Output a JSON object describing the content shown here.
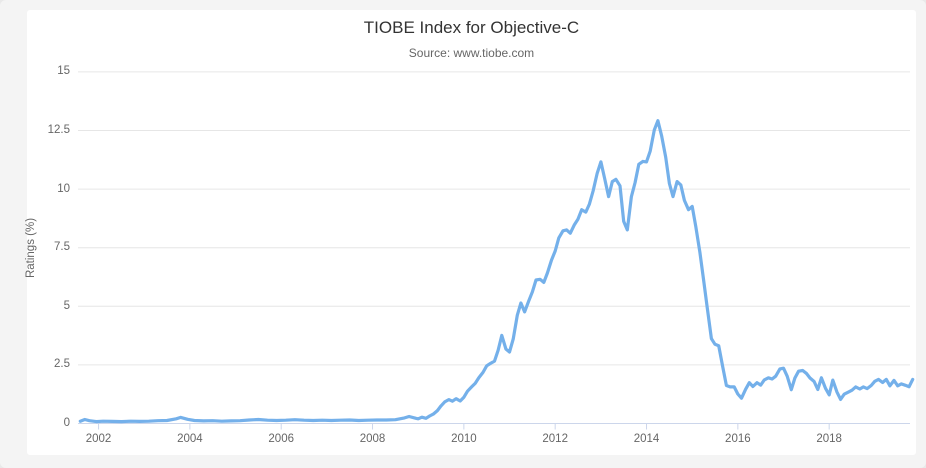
{
  "page": {
    "background_color": "#f4f4f4",
    "card_background_color": "#ffffff"
  },
  "chart_data": {
    "type": "line",
    "title": "TIOBE Index for Objective-C",
    "subtitle": "Source: www.tiobe.com",
    "xlabel": "",
    "ylabel": "Ratings (%)",
    "legend": "none",
    "grid": "horizontal",
    "ylim": [
      0,
      15
    ],
    "xlim": [
      2001.55,
      2019.77
    ],
    "yticks": [
      0,
      2.5,
      5,
      7.5,
      10,
      12.5,
      15
    ],
    "ytick_labels": [
      "0",
      "2.5",
      "5",
      "7.5",
      "10",
      "12.5",
      "15"
    ],
    "xticks": [
      2002,
      2004,
      2006,
      2008,
      2010,
      2012,
      2014,
      2016,
      2018
    ],
    "xtick_labels": [
      "2002",
      "2004",
      "2006",
      "2008",
      "2010",
      "2012",
      "2014",
      "2016",
      "2018"
    ],
    "line_color": "#74b0ea",
    "grid_color": "#e6e6e6",
    "axis_line_color": "#ccd6eb",
    "tick_text_color": "#666666",
    "title_color": "#333333",
    "series": [
      {
        "name": "Objective-C",
        "points": [
          [
            2001.6,
            0.1
          ],
          [
            2001.7,
            0.17
          ],
          [
            2001.8,
            0.12
          ],
          [
            2001.95,
            0.08
          ],
          [
            2002.1,
            0.1
          ],
          [
            2002.3,
            0.09
          ],
          [
            2002.5,
            0.08
          ],
          [
            2002.7,
            0.1
          ],
          [
            2002.9,
            0.09
          ],
          [
            2003.1,
            0.1
          ],
          [
            2003.3,
            0.12
          ],
          [
            2003.5,
            0.13
          ],
          [
            2003.7,
            0.2
          ],
          [
            2003.8,
            0.26
          ],
          [
            2003.95,
            0.18
          ],
          [
            2004.1,
            0.13
          ],
          [
            2004.3,
            0.11
          ],
          [
            2004.5,
            0.12
          ],
          [
            2004.7,
            0.1
          ],
          [
            2004.9,
            0.11
          ],
          [
            2005.1,
            0.12
          ],
          [
            2005.3,
            0.15
          ],
          [
            2005.5,
            0.17
          ],
          [
            2005.7,
            0.14
          ],
          [
            2005.9,
            0.13
          ],
          [
            2006.1,
            0.14
          ],
          [
            2006.3,
            0.16
          ],
          [
            2006.5,
            0.14
          ],
          [
            2006.7,
            0.13
          ],
          [
            2006.9,
            0.14
          ],
          [
            2007.1,
            0.13
          ],
          [
            2007.3,
            0.14
          ],
          [
            2007.5,
            0.15
          ],
          [
            2007.7,
            0.13
          ],
          [
            2007.9,
            0.14
          ],
          [
            2008.1,
            0.15
          ],
          [
            2008.3,
            0.15
          ],
          [
            2008.5,
            0.16
          ],
          [
            2008.7,
            0.24
          ],
          [
            2008.8,
            0.3
          ],
          [
            2008.95,
            0.22
          ],
          [
            2009.0,
            0.2
          ],
          [
            2009.08,
            0.27
          ],
          [
            2009.17,
            0.22
          ],
          [
            2009.25,
            0.32
          ],
          [
            2009.33,
            0.4
          ],
          [
            2009.42,
            0.55
          ],
          [
            2009.5,
            0.75
          ],
          [
            2009.58,
            0.92
          ],
          [
            2009.67,
            1.02
          ],
          [
            2009.75,
            0.95
          ],
          [
            2009.83,
            1.06
          ],
          [
            2009.92,
            0.96
          ],
          [
            2010.0,
            1.12
          ],
          [
            2010.08,
            1.38
          ],
          [
            2010.17,
            1.56
          ],
          [
            2010.25,
            1.72
          ],
          [
            2010.33,
            1.96
          ],
          [
            2010.42,
            2.18
          ],
          [
            2010.5,
            2.46
          ],
          [
            2010.58,
            2.56
          ],
          [
            2010.67,
            2.66
          ],
          [
            2010.75,
            3.12
          ],
          [
            2010.83,
            3.76
          ],
          [
            2010.92,
            3.18
          ],
          [
            2011.0,
            3.05
          ],
          [
            2011.08,
            3.6
          ],
          [
            2011.17,
            4.62
          ],
          [
            2011.25,
            5.14
          ],
          [
            2011.33,
            4.76
          ],
          [
            2011.42,
            5.22
          ],
          [
            2011.5,
            5.62
          ],
          [
            2011.58,
            6.12
          ],
          [
            2011.67,
            6.15
          ],
          [
            2011.75,
            6.02
          ],
          [
            2011.83,
            6.42
          ],
          [
            2011.92,
            6.97
          ],
          [
            2012.0,
            7.36
          ],
          [
            2012.08,
            7.92
          ],
          [
            2012.17,
            8.22
          ],
          [
            2012.25,
            8.26
          ],
          [
            2012.33,
            8.12
          ],
          [
            2012.42,
            8.48
          ],
          [
            2012.5,
            8.72
          ],
          [
            2012.58,
            9.12
          ],
          [
            2012.67,
            9.02
          ],
          [
            2012.75,
            9.36
          ],
          [
            2012.83,
            9.92
          ],
          [
            2012.92,
            10.68
          ],
          [
            2013.0,
            11.16
          ],
          [
            2013.08,
            10.48
          ],
          [
            2013.17,
            9.68
          ],
          [
            2013.25,
            10.32
          ],
          [
            2013.33,
            10.42
          ],
          [
            2013.42,
            10.14
          ],
          [
            2013.5,
            8.62
          ],
          [
            2013.58,
            8.26
          ],
          [
            2013.67,
            9.68
          ],
          [
            2013.75,
            10.28
          ],
          [
            2013.83,
            11.06
          ],
          [
            2013.92,
            11.18
          ],
          [
            2014.0,
            11.16
          ],
          [
            2014.08,
            11.62
          ],
          [
            2014.17,
            12.52
          ],
          [
            2014.25,
            12.92
          ],
          [
            2014.33,
            12.28
          ],
          [
            2014.42,
            11.36
          ],
          [
            2014.5,
            10.24
          ],
          [
            2014.58,
            9.68
          ],
          [
            2014.67,
            10.32
          ],
          [
            2014.75,
            10.18
          ],
          [
            2014.83,
            9.52
          ],
          [
            2014.92,
            9.12
          ],
          [
            2015.0,
            9.26
          ],
          [
            2015.08,
            8.4
          ],
          [
            2015.17,
            7.3
          ],
          [
            2015.25,
            6.12
          ],
          [
            2015.33,
            4.92
          ],
          [
            2015.42,
            3.62
          ],
          [
            2015.5,
            3.38
          ],
          [
            2015.58,
            3.32
          ],
          [
            2015.67,
            2.4
          ],
          [
            2015.75,
            1.62
          ],
          [
            2015.83,
            1.56
          ],
          [
            2015.92,
            1.56
          ],
          [
            2016.0,
            1.26
          ],
          [
            2016.08,
            1.08
          ],
          [
            2016.17,
            1.46
          ],
          [
            2016.25,
            1.74
          ],
          [
            2016.33,
            1.58
          ],
          [
            2016.42,
            1.74
          ],
          [
            2016.5,
            1.64
          ],
          [
            2016.58,
            1.86
          ],
          [
            2016.67,
            1.95
          ],
          [
            2016.75,
            1.9
          ],
          [
            2016.83,
            2.02
          ],
          [
            2016.92,
            2.33
          ],
          [
            2017.0,
            2.36
          ],
          [
            2017.08,
            2.02
          ],
          [
            2017.17,
            1.44
          ],
          [
            2017.25,
            1.94
          ],
          [
            2017.33,
            2.23
          ],
          [
            2017.42,
            2.26
          ],
          [
            2017.5,
            2.14
          ],
          [
            2017.58,
            1.94
          ],
          [
            2017.67,
            1.79
          ],
          [
            2017.75,
            1.45
          ],
          [
            2017.83,
            1.95
          ],
          [
            2017.92,
            1.5
          ],
          [
            2018.0,
            1.22
          ],
          [
            2018.08,
            1.85
          ],
          [
            2018.17,
            1.35
          ],
          [
            2018.25,
            1.03
          ],
          [
            2018.33,
            1.25
          ],
          [
            2018.42,
            1.34
          ],
          [
            2018.5,
            1.42
          ],
          [
            2018.58,
            1.56
          ],
          [
            2018.67,
            1.47
          ],
          [
            2018.75,
            1.56
          ],
          [
            2018.83,
            1.49
          ],
          [
            2018.92,
            1.62
          ],
          [
            2019.0,
            1.8
          ],
          [
            2019.08,
            1.88
          ],
          [
            2019.17,
            1.75
          ],
          [
            2019.25,
            1.88
          ],
          [
            2019.33,
            1.61
          ],
          [
            2019.42,
            1.84
          ],
          [
            2019.5,
            1.61
          ],
          [
            2019.58,
            1.69
          ],
          [
            2019.67,
            1.63
          ],
          [
            2019.75,
            1.57
          ],
          [
            2019.83,
            1.88
          ]
        ]
      }
    ]
  }
}
